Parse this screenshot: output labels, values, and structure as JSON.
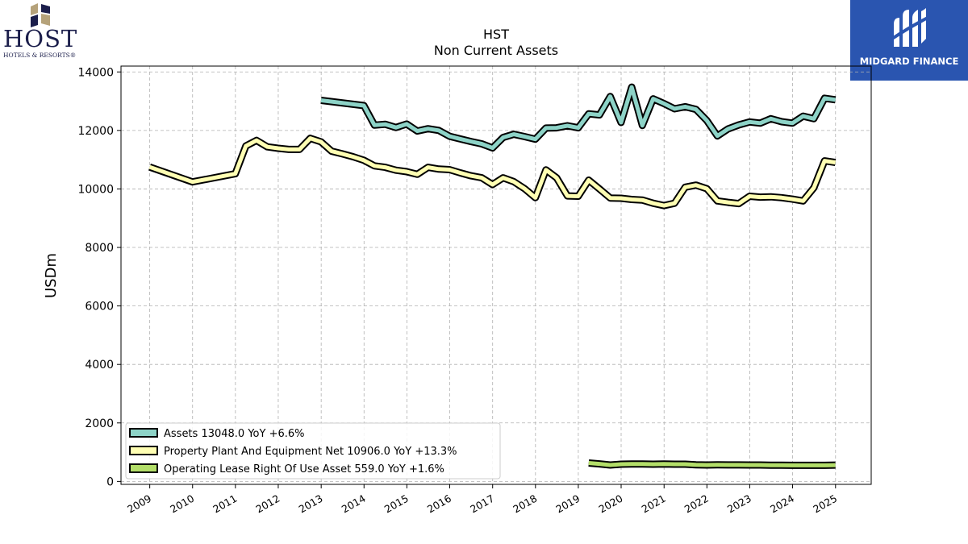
{
  "logos": {
    "host": {
      "name": "HOST",
      "subtitle": "HOTELS & RESORTS®"
    },
    "midgard": {
      "name": "MIDGARD FINANCE",
      "color": "#2a55b0"
    }
  },
  "chart_data": {
    "type": "line",
    "title": "HST",
    "subtitle": "Non Current  Assets",
    "ylabel": "USDm",
    "xlabel": "",
    "ylim": [
      -100,
      14200
    ],
    "xlim": [
      "2008-05-01",
      "2025-11-01"
    ],
    "y_ticks": [
      0,
      2000,
      4000,
      6000,
      8000,
      10000,
      12000,
      14000
    ],
    "x_ticks": [
      "2009",
      "2010",
      "2011",
      "2012",
      "2013",
      "2014",
      "2015",
      "2016",
      "2017",
      "2018",
      "2019",
      "2020",
      "2021",
      "2022",
      "2023",
      "2024",
      "2025"
    ],
    "grid": true,
    "legend_position": "lower-left",
    "series": [
      {
        "name": "Assets  13048.0 YoY +6.6%",
        "color": "#8dd3c7",
        "points": [
          [
            "2012-12-31",
            13030
          ],
          [
            "2013-12-31",
            12850
          ],
          [
            "2014-03-31",
            12180
          ],
          [
            "2014-06-30",
            12210
          ],
          [
            "2014-09-30",
            12100
          ],
          [
            "2014-12-31",
            12220
          ],
          [
            "2015-03-31",
            11980
          ],
          [
            "2015-06-30",
            12060
          ],
          [
            "2015-09-30",
            12000
          ],
          [
            "2015-12-31",
            11800
          ],
          [
            "2016-03-31",
            11710
          ],
          [
            "2016-06-30",
            11620
          ],
          [
            "2016-09-30",
            11540
          ],
          [
            "2016-12-31",
            11400
          ],
          [
            "2017-03-31",
            11760
          ],
          [
            "2017-06-30",
            11870
          ],
          [
            "2017-09-30",
            11790
          ],
          [
            "2017-12-31",
            11700
          ],
          [
            "2018-03-31",
            12080
          ],
          [
            "2018-06-30",
            12090
          ],
          [
            "2018-09-30",
            12160
          ],
          [
            "2018-12-31",
            12090
          ],
          [
            "2019-03-31",
            12570
          ],
          [
            "2019-06-30",
            12530
          ],
          [
            "2019-09-30",
            13160
          ],
          [
            "2019-12-31",
            12270
          ],
          [
            "2020-03-31",
            13480
          ],
          [
            "2020-06-30",
            12170
          ],
          [
            "2020-09-30",
            13080
          ],
          [
            "2020-12-31",
            12920
          ],
          [
            "2021-03-31",
            12740
          ],
          [
            "2021-06-30",
            12810
          ],
          [
            "2021-09-30",
            12720
          ],
          [
            "2021-12-31",
            12340
          ],
          [
            "2022-03-31",
            11810
          ],
          [
            "2022-06-30",
            12050
          ],
          [
            "2022-09-30",
            12190
          ],
          [
            "2022-12-31",
            12290
          ],
          [
            "2023-03-31",
            12250
          ],
          [
            "2023-06-30",
            12400
          ],
          [
            "2023-09-30",
            12300
          ],
          [
            "2023-12-31",
            12250
          ],
          [
            "2024-03-31",
            12490
          ],
          [
            "2024-06-30",
            12400
          ],
          [
            "2024-09-30",
            13100
          ],
          [
            "2024-12-31",
            13048
          ]
        ]
      },
      {
        "name": "Property Plant And Equipment Net  10906.0 YoY +13.3%",
        "color": "#ffffb3",
        "points": [
          [
            "2008-12-31",
            10750
          ],
          [
            "2009-12-31",
            10240
          ],
          [
            "2010-12-31",
            10520
          ],
          [
            "2011-03-31",
            11470
          ],
          [
            "2011-06-30",
            11660
          ],
          [
            "2011-09-30",
            11440
          ],
          [
            "2011-12-31",
            11390
          ],
          [
            "2012-03-31",
            11350
          ],
          [
            "2012-06-30",
            11350
          ],
          [
            "2012-09-30",
            11730
          ],
          [
            "2012-12-31",
            11610
          ],
          [
            "2013-03-31",
            11290
          ],
          [
            "2013-06-30",
            11200
          ],
          [
            "2013-09-30",
            11100
          ],
          [
            "2013-12-31",
            10980
          ],
          [
            "2014-03-31",
            10790
          ],
          [
            "2014-06-30",
            10740
          ],
          [
            "2014-09-30",
            10640
          ],
          [
            "2014-12-31",
            10590
          ],
          [
            "2015-03-31",
            10500
          ],
          [
            "2015-06-30",
            10740
          ],
          [
            "2015-09-30",
            10680
          ],
          [
            "2015-12-31",
            10660
          ],
          [
            "2016-03-31",
            10550
          ],
          [
            "2016-06-30",
            10450
          ],
          [
            "2016-09-30",
            10380
          ],
          [
            "2016-12-31",
            10150
          ],
          [
            "2017-03-31",
            10380
          ],
          [
            "2017-06-30",
            10250
          ],
          [
            "2017-09-30",
            10010
          ],
          [
            "2017-12-31",
            9700
          ],
          [
            "2018-03-31",
            10650
          ],
          [
            "2018-06-30",
            10380
          ],
          [
            "2018-09-30",
            9760
          ],
          [
            "2018-12-31",
            9750
          ],
          [
            "2019-03-31",
            10300
          ],
          [
            "2019-06-30",
            10000
          ],
          [
            "2019-09-30",
            9690
          ],
          [
            "2019-12-31",
            9680
          ],
          [
            "2020-03-31",
            9640
          ],
          [
            "2020-06-30",
            9620
          ],
          [
            "2020-09-30",
            9510
          ],
          [
            "2020-12-31",
            9430
          ],
          [
            "2021-03-31",
            9510
          ],
          [
            "2021-06-30",
            10060
          ],
          [
            "2021-09-30",
            10130
          ],
          [
            "2021-12-31",
            10010
          ],
          [
            "2022-03-31",
            9590
          ],
          [
            "2022-06-30",
            9540
          ],
          [
            "2022-09-30",
            9500
          ],
          [
            "2022-12-31",
            9750
          ],
          [
            "2023-03-31",
            9720
          ],
          [
            "2023-06-30",
            9730
          ],
          [
            "2023-09-30",
            9700
          ],
          [
            "2023-12-31",
            9650
          ],
          [
            "2024-03-31",
            9590
          ],
          [
            "2024-06-30",
            10040
          ],
          [
            "2024-09-30",
            10960
          ],
          [
            "2024-12-31",
            10906
          ]
        ]
      },
      {
        "name": "Operating Lease Right Of Use Asset  559.0 YoY +1.6%",
        "color": "#b3de69",
        "points": [
          [
            "2019-03-31",
            630
          ],
          [
            "2019-06-30",
            600
          ],
          [
            "2019-09-30",
            560
          ],
          [
            "2019-12-31",
            590
          ],
          [
            "2020-03-31",
            595
          ],
          [
            "2020-06-30",
            595
          ],
          [
            "2020-09-30",
            590
          ],
          [
            "2020-12-31",
            595
          ],
          [
            "2021-03-31",
            590
          ],
          [
            "2021-06-30",
            590
          ],
          [
            "2021-09-30",
            570
          ],
          [
            "2021-12-31",
            560
          ],
          [
            "2022-03-31",
            570
          ],
          [
            "2022-06-30",
            565
          ],
          [
            "2022-09-30",
            565
          ],
          [
            "2022-12-31",
            560
          ],
          [
            "2023-03-31",
            560
          ],
          [
            "2023-06-30",
            555
          ],
          [
            "2023-09-30",
            555
          ],
          [
            "2023-12-31",
            550
          ],
          [
            "2024-03-31",
            550
          ],
          [
            "2024-06-30",
            550
          ],
          [
            "2024-09-30",
            550
          ],
          [
            "2024-12-31",
            559
          ]
        ]
      }
    ]
  }
}
